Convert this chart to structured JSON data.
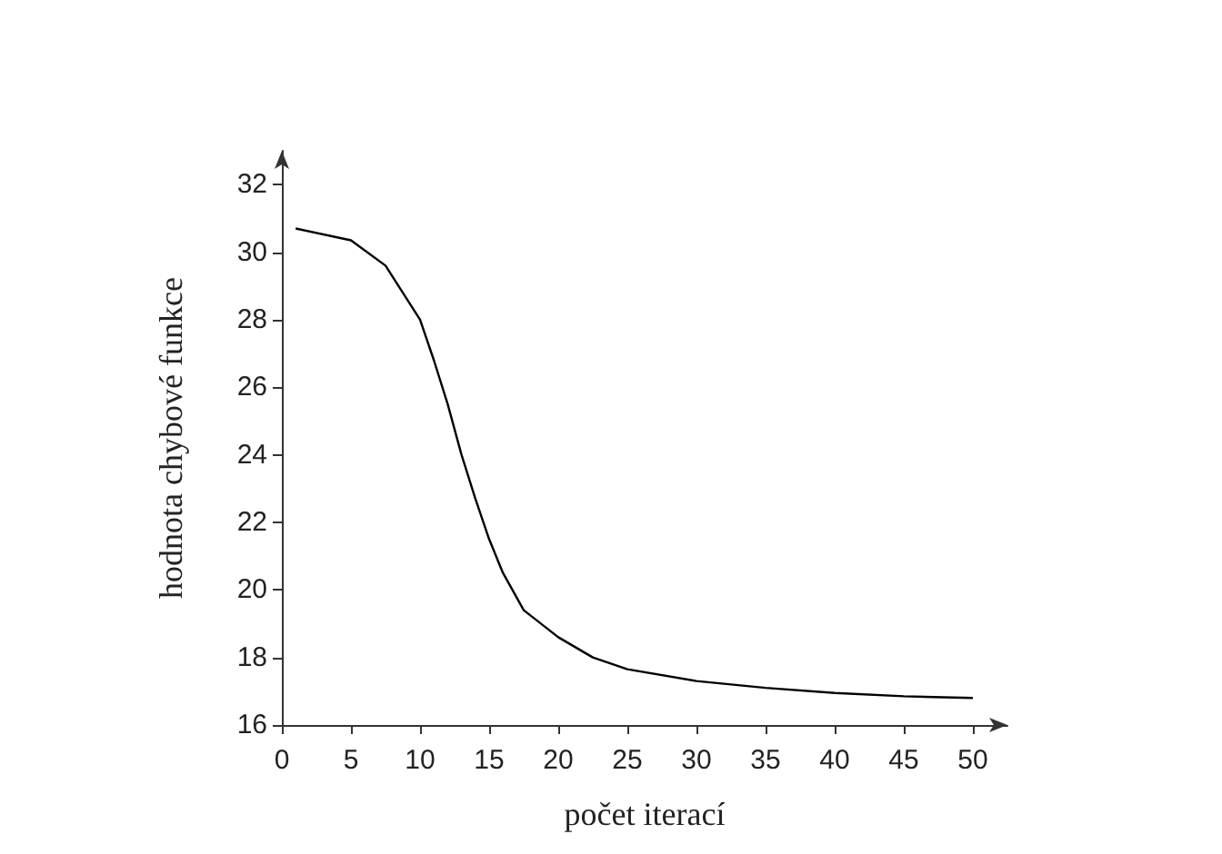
{
  "chart_data": {
    "type": "line",
    "xlabel": "počet iterací",
    "ylabel": "hodnota chybové funkce",
    "x": [
      1,
      5,
      7.5,
      10,
      11,
      12,
      13,
      14,
      15,
      16,
      17.5,
      20,
      22.5,
      25,
      30,
      35,
      40,
      45,
      50
    ],
    "series": [
      {
        "color": "#000000",
        "values": [
          30.7,
          30.35,
          29.6,
          28.0,
          26.8,
          25.5,
          24.0,
          22.7,
          21.5,
          20.5,
          19.4,
          18.6,
          18.0,
          17.65,
          17.3,
          17.1,
          16.95,
          16.85,
          16.8
        ]
      }
    ],
    "xlim": [
      0,
      52.5
    ],
    "ylim": [
      16,
      33
    ],
    "xticks": [
      0,
      5,
      10,
      15,
      20,
      25,
      30,
      35,
      40,
      45,
      50
    ],
    "yticks": [
      16,
      18,
      20,
      22,
      24,
      26,
      28,
      30,
      32
    ],
    "grid": false,
    "marker": "none",
    "line_style": "solid"
  }
}
